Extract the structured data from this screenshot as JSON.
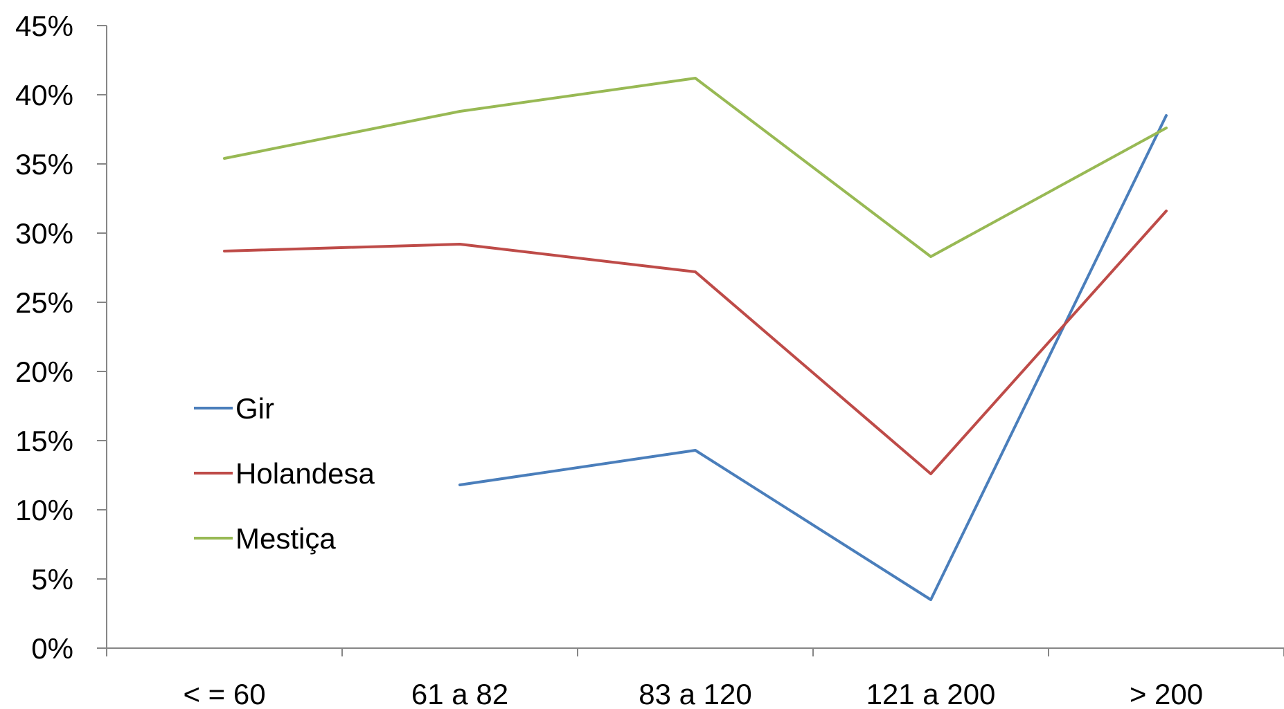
{
  "chart_data": {
    "type": "line",
    "categories": [
      "< = 60",
      "61 a 82",
      "83 a 120",
      "121 a 200",
      "> 200"
    ],
    "y_ticks": [
      "0%",
      "5%",
      "10%",
      "15%",
      "20%",
      "25%",
      "30%",
      "35%",
      "40%",
      "45%"
    ],
    "ylim": [
      0,
      45
    ],
    "y_unit": "%",
    "grid": false,
    "legend_position": "left-middle",
    "series": [
      {
        "name": "Gir",
        "color": "#4a7ebb",
        "values": [
          null,
          11.8,
          14.3,
          3.5,
          38.5
        ]
      },
      {
        "name": "Holandesa",
        "color": "#be4b48",
        "values": [
          28.7,
          29.2,
          27.2,
          12.6,
          31.6
        ]
      },
      {
        "name": "Mestiça",
        "color": "#98b954",
        "values": [
          35.4,
          38.8,
          41.2,
          28.3,
          37.6
        ]
      }
    ]
  }
}
